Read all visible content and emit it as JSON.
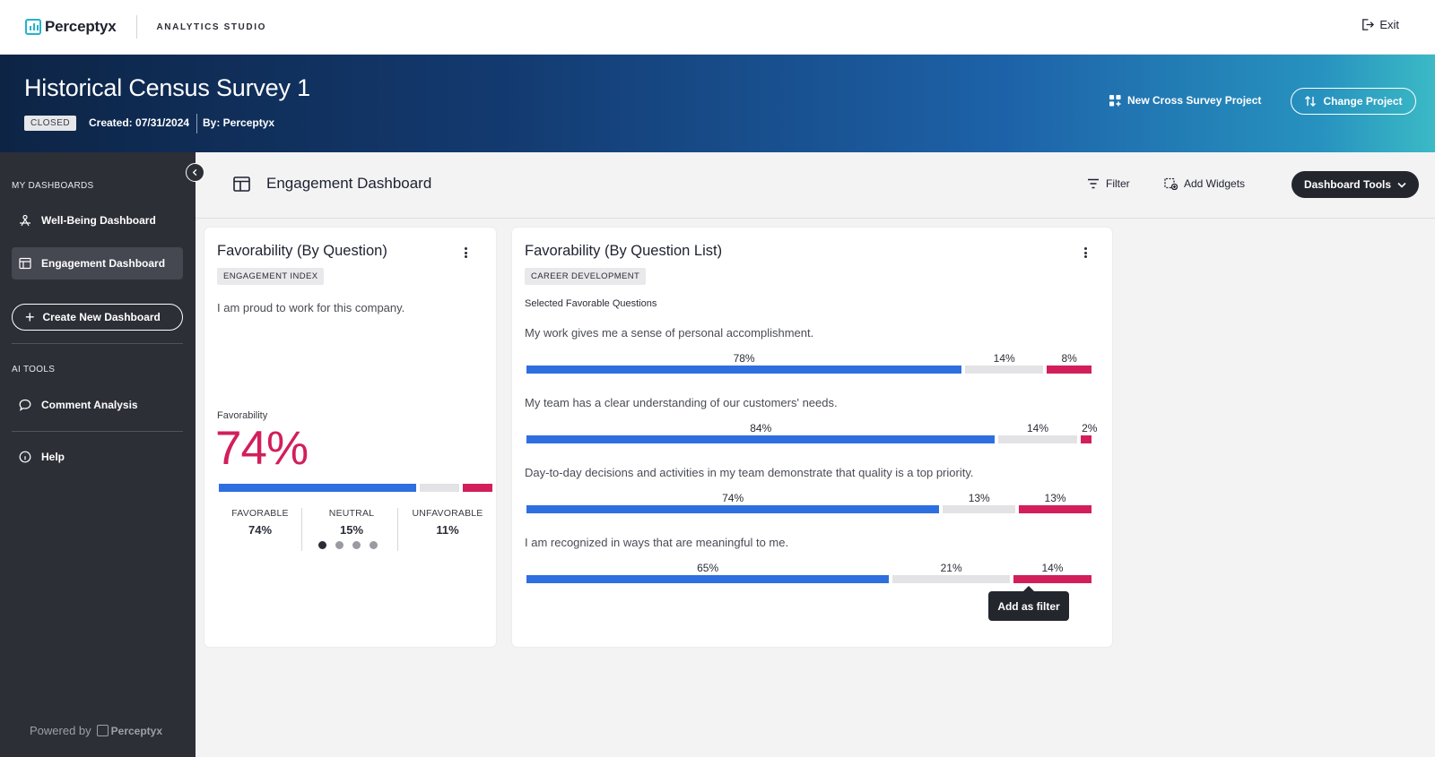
{
  "app": {
    "logo_text": "Perceptyx",
    "studio": "ANALYTICS STUDIO",
    "exit_label": "Exit"
  },
  "survey": {
    "title": "Historical Census Survey 1",
    "status": "CLOSED",
    "created": "Created: 07/31/2024",
    "by": "By: Perceptyx",
    "new_cross_label": "New Cross Survey Project",
    "change_project_label": "Change Project"
  },
  "sidebar": {
    "my_dashboards_label": "MY DASHBOARDS",
    "items": [
      {
        "label": "Well-Being Dashboard",
        "icon": "wellbeing-icon"
      },
      {
        "label": "Engagement Dashboard",
        "icon": "dashboard-icon"
      }
    ],
    "create_label": "Create New Dashboard",
    "ai_tools_label": "AI TOOLS",
    "comment_analysis_label": "Comment Analysis",
    "help_label": "Help",
    "powered_by": "Powered by",
    "powered_brand": "Perceptyx"
  },
  "dashboard": {
    "title": "Engagement Dashboard",
    "filter_label": "Filter",
    "add_widgets_label": "Add Widgets",
    "tools_label": "Dashboard Tools"
  },
  "widget1": {
    "title": "Favorability (By Question)",
    "tag": "ENGAGEMENT INDEX",
    "question": "I am proud to work for this company.",
    "fav_label": "Favorability",
    "fav_value": "74%",
    "favorable_pct": 74,
    "neutral_pct": 15,
    "unfavorable_pct": 11,
    "stats": [
      {
        "label": "FAVORABLE",
        "value": "74%"
      },
      {
        "label": "NEUTRAL",
        "value": "15%"
      },
      {
        "label": "UNFAVORABLE",
        "value": "11%"
      }
    ],
    "page_index": 0,
    "page_count": 4
  },
  "widget2": {
    "title": "Favorability (By Question List)",
    "tag": "CAREER DEVELOPMENT",
    "subtitle": "Selected Favorable Questions",
    "questions": [
      {
        "text": "My work gives me a sense of personal accomplishment.",
        "fav": 78,
        "neu": 14,
        "unf": 8,
        "fav_label": "78%",
        "neu_label": "14%",
        "unf_label": "8%"
      },
      {
        "text": "My team has a clear understanding of our customers' needs.",
        "fav": 84,
        "neu": 14,
        "unf": 2,
        "fav_label": "84%",
        "neu_label": "14%",
        "unf_label": "2%"
      },
      {
        "text": "Day-to-day decisions and activities in my team demonstrate that quality is a top priority.",
        "fav": 74,
        "neu": 13,
        "unf": 13,
        "fav_label": "74%",
        "neu_label": "13%",
        "unf_label": "13%"
      },
      {
        "text": "I am recognized in ways that are meaningful to me.",
        "fav": 65,
        "neu": 21,
        "unf": 14,
        "fav_label": "65%",
        "neu_label": "21%",
        "unf_label": "14%"
      }
    ],
    "tooltip_label": "Add as filter"
  },
  "colors": {
    "favorable": "#2e6fe0",
    "neutral": "#e3e3e6",
    "unfavorable": "#d21f5c",
    "accent": "#24b3c9"
  }
}
